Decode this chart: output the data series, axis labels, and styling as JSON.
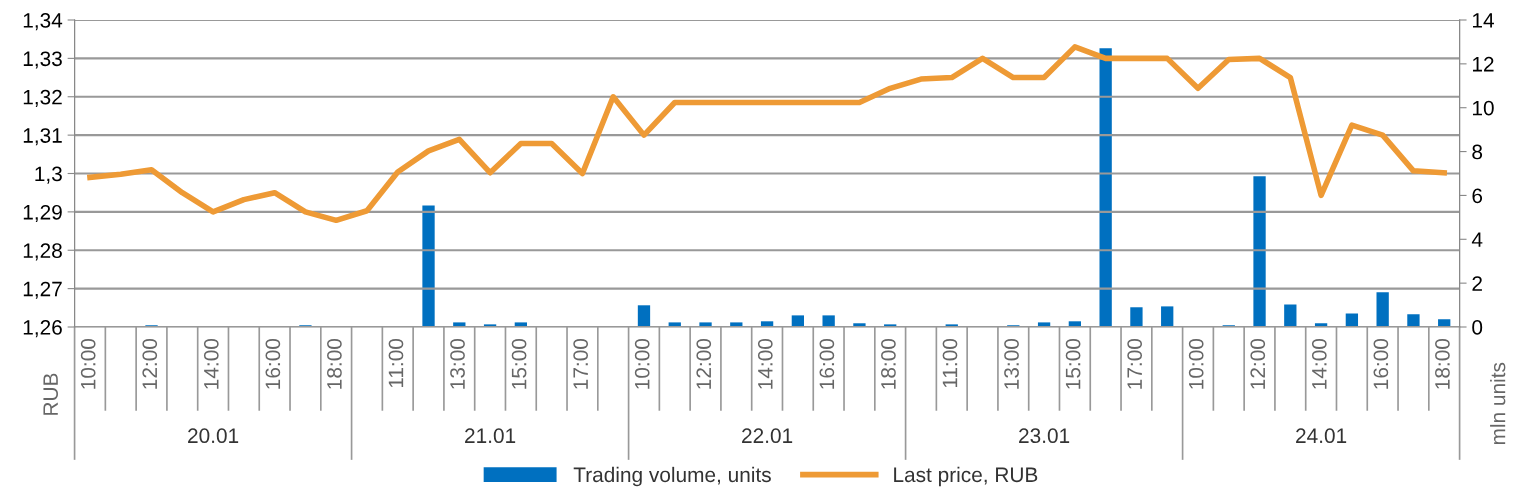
{
  "chart_data": {
    "type": "bar",
    "categories": [
      "10:00",
      null,
      "12:00",
      null,
      "14:00",
      null,
      "16:00",
      null,
      "18:00",
      null,
      "11:00",
      null,
      "13:00",
      null,
      "15:00",
      null,
      "17:00",
      null,
      "10:00",
      null,
      "12:00",
      null,
      "14:00",
      null,
      "16:00",
      null,
      "18:00",
      null,
      "11:00",
      null,
      "13:00",
      null,
      "15:00",
      null,
      "17:00",
      null,
      "10:00",
      null,
      "12:00",
      null,
      "14:00",
      null,
      "16:00",
      null,
      "18:00"
    ],
    "series": [
      {
        "name": "Trading volume, units",
        "axis": "y2",
        "color": "#0070c0",
        "values": [
          0,
          0,
          0.08,
          0,
          0,
          0,
          0,
          0.08,
          0,
          0,
          0,
          5.54,
          0.21,
          0.12,
          0.21,
          0,
          0,
          0,
          0.99,
          0.21,
          0.21,
          0.21,
          0.26,
          0.53,
          0.53,
          0.17,
          0.12,
          0,
          0.12,
          0,
          0.08,
          0.21,
          0.26,
          12.71,
          0.9,
          0.94,
          0,
          0.08,
          6.88,
          1.03,
          0.17,
          0.62,
          1.58,
          0.58,
          0.35
        ]
      },
      {
        "name": "Last price, RUB",
        "type": "line",
        "axis": "y",
        "color": "#ee9a35",
        "values": [
          1.299,
          1.2998,
          1.301,
          1.295,
          1.29,
          1.2932,
          1.295,
          1.29,
          1.2878,
          1.2903,
          1.3004,
          1.3059,
          1.3089,
          1.3002,
          1.3078,
          1.3078,
          1.3,
          1.32,
          1.31,
          1.3185,
          1.3185,
          1.3185,
          1.3185,
          1.3185,
          1.3185,
          1.3185,
          1.3222,
          1.3246,
          1.325,
          1.33,
          1.325,
          1.325,
          1.333,
          1.33,
          1.33,
          1.33,
          1.3222,
          1.3297,
          1.33,
          1.325,
          1.2943,
          1.3126,
          1.31,
          1.3007,
          1.3002
        ]
      }
    ],
    "ylabel": "RUB",
    "y2label": "mln units",
    "ylim": [
      1.26,
      1.34
    ],
    "yticks": [
      {
        "value": 1.26,
        "label": "1,26"
      },
      {
        "value": 1.27,
        "label": "1,27"
      },
      {
        "value": 1.28,
        "label": "1,28"
      },
      {
        "value": 1.29,
        "label": "1,29"
      },
      {
        "value": 1.3,
        "label": "1,3"
      },
      {
        "value": 1.31,
        "label": "1,31"
      },
      {
        "value": 1.32,
        "label": "1,32"
      },
      {
        "value": 1.33,
        "label": "1,33"
      },
      {
        "value": 1.34,
        "label": "1,34"
      }
    ],
    "y2lim": [
      0,
      14
    ],
    "y2ticks": [
      0,
      2,
      4,
      6,
      8,
      10,
      12,
      14
    ],
    "annotations": [
      "20.01",
      "21.01",
      "22.01",
      "23.01",
      "24.01"
    ],
    "grid": "y",
    "legend": "bottom",
    "marker": "none",
    "line_style": "solid"
  }
}
